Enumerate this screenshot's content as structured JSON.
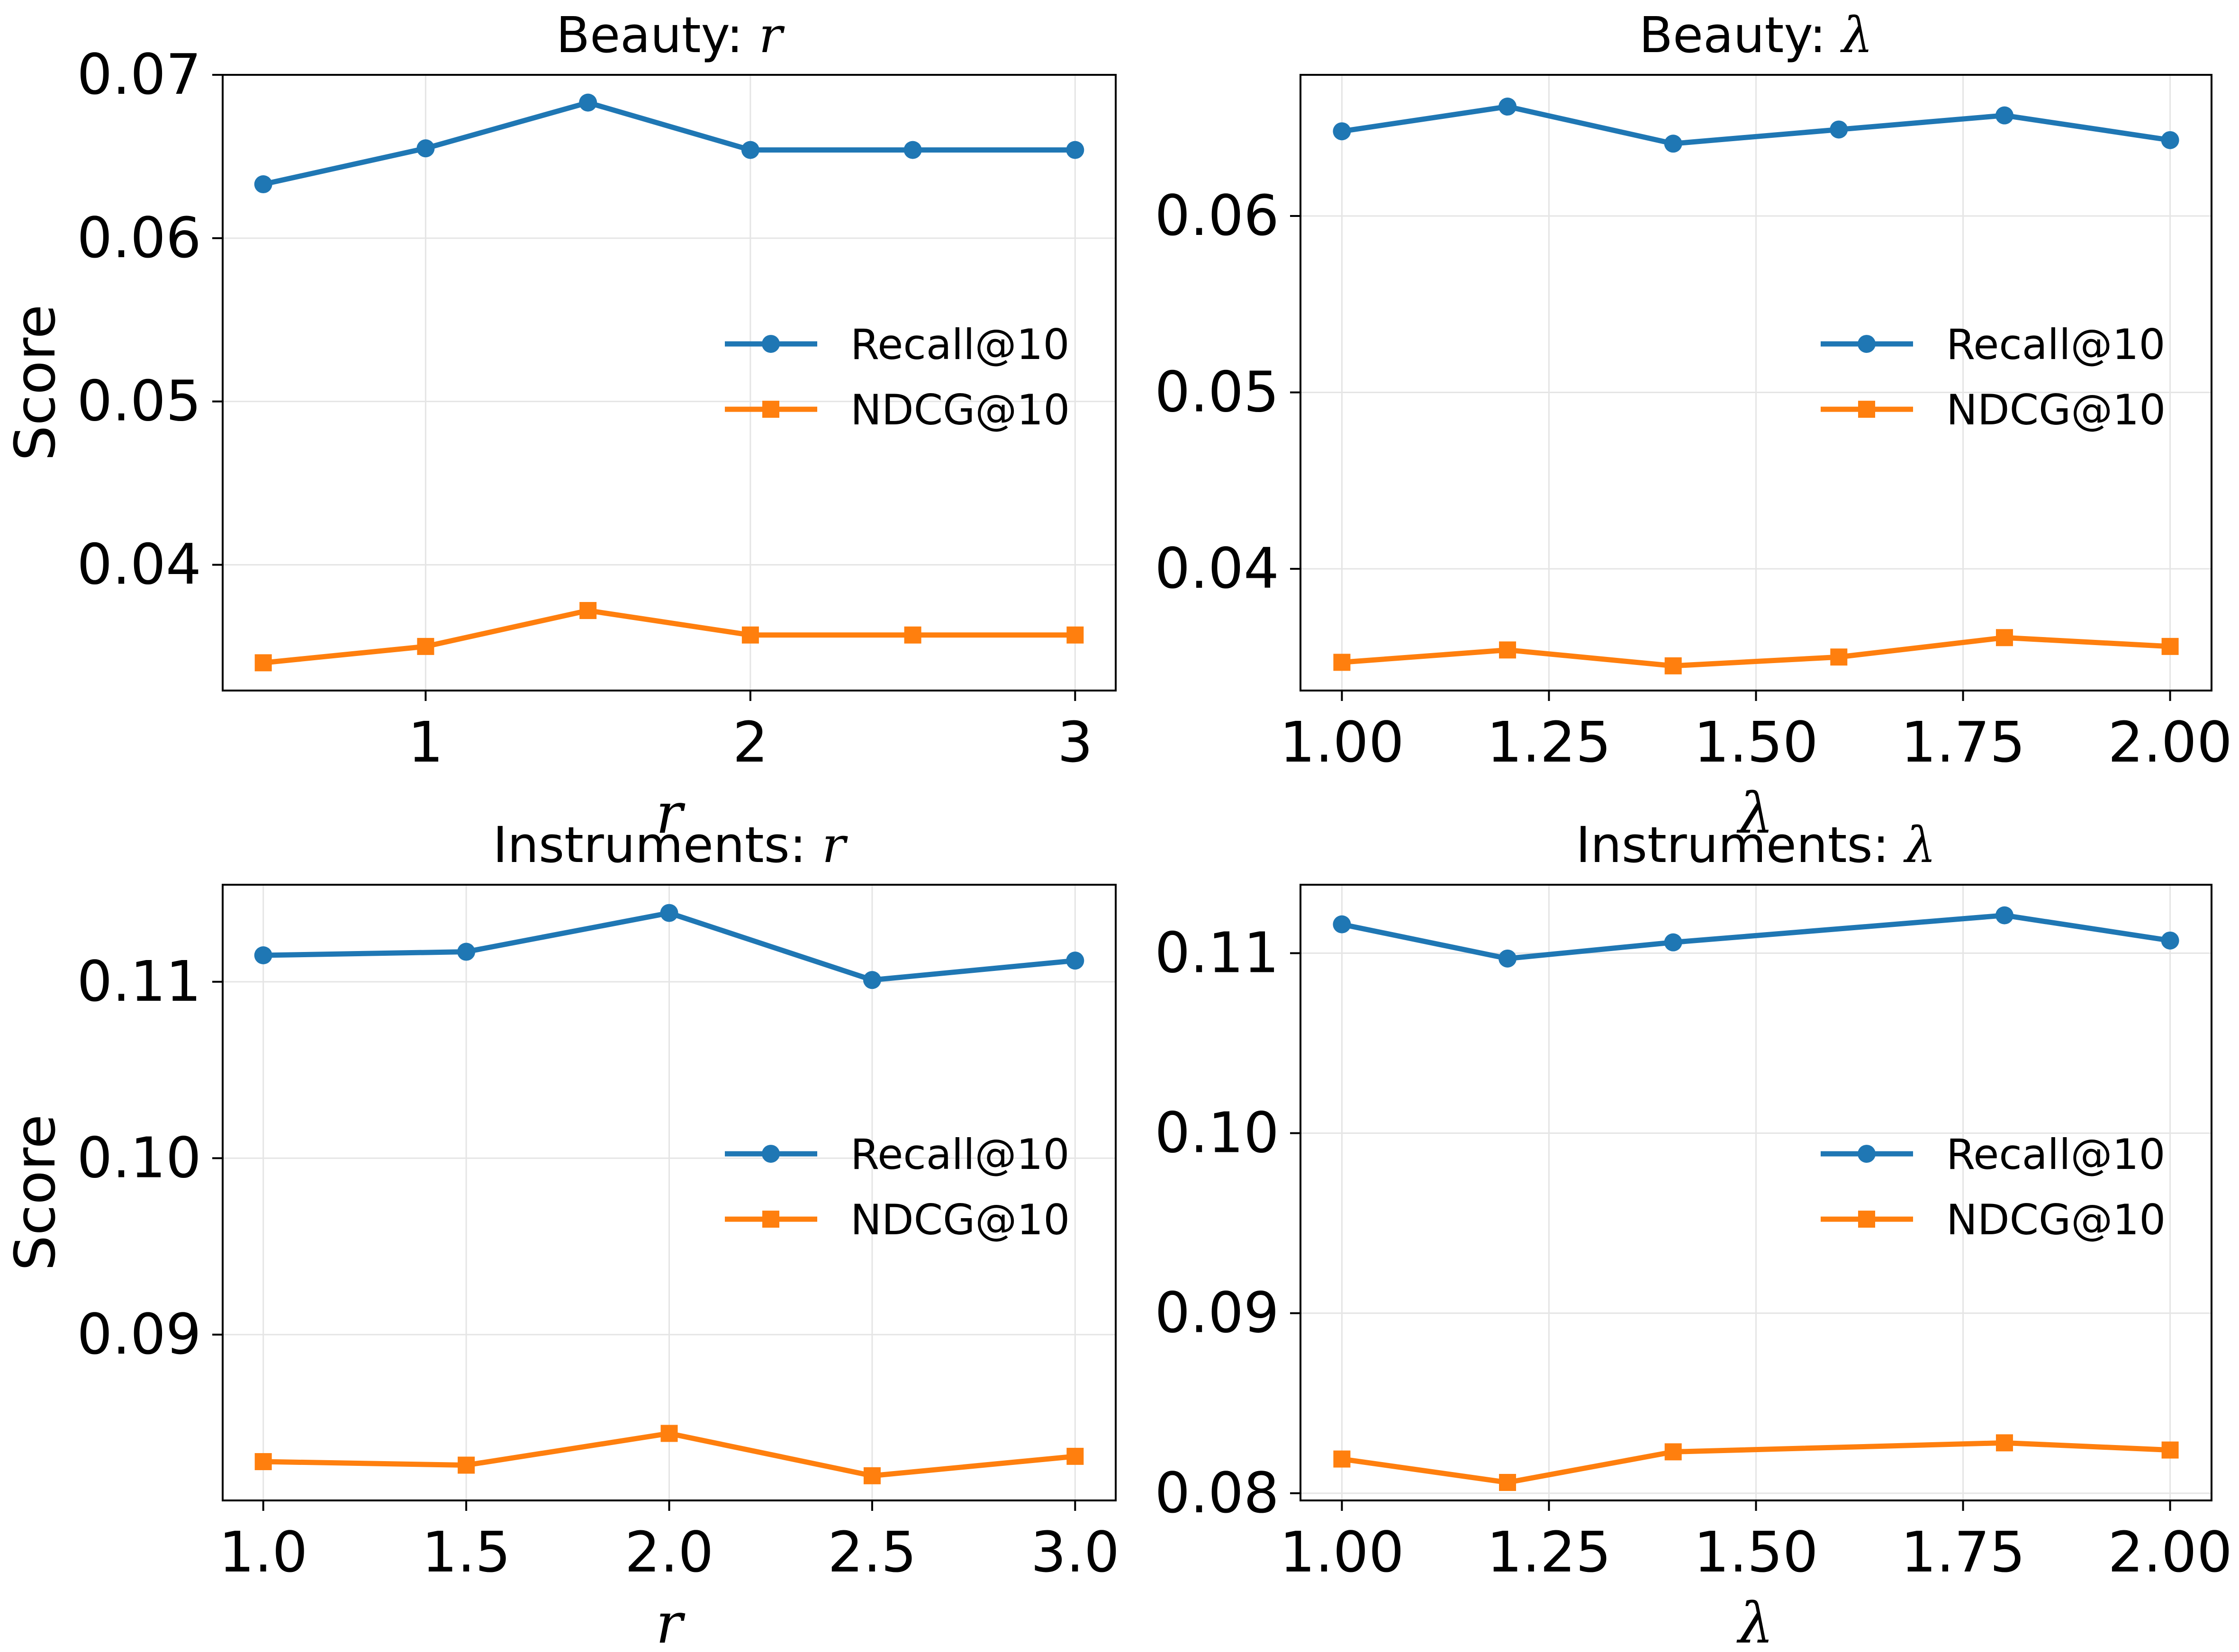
{
  "colors": {
    "recall": "#1f77b4",
    "ndcg": "#ff7f0e",
    "grid": "#e5e5e5",
    "axis": "#000000"
  },
  "chart_data": [
    {
      "type": "line",
      "title_prefix": "Beauty: ",
      "title_symbol": "r",
      "xlabel": "r",
      "ylabel": "Score",
      "xlim": [
        0.375,
        3.125
      ],
      "ylim": [
        0.0323,
        0.07
      ],
      "xticks": [
        1,
        2,
        3
      ],
      "xtick_labels": [
        "1",
        "2",
        "3"
      ],
      "yticks": [
        0.04,
        0.05,
        0.06,
        0.07
      ],
      "ytick_labels": [
        "0.04",
        "0.05",
        "0.06",
        "0.07"
      ],
      "legend_position": "center-right",
      "x": [
        0.5,
        1.0,
        1.5,
        2.0,
        2.5,
        3.0
      ],
      "series": [
        {
          "name": "Recall@10",
          "marker": "circle",
          "values": [
            0.0633,
            0.0655,
            0.0683,
            0.0654,
            0.0654,
            0.0654
          ]
        },
        {
          "name": "NDCG@10",
          "marker": "square",
          "values": [
            0.034,
            0.035,
            0.0372,
            0.0357,
            0.0357,
            0.0357
          ]
        }
      ]
    },
    {
      "type": "line",
      "title_prefix": "Beauty: ",
      "title_symbol": "λ",
      "xlabel": "λ",
      "ylabel": "",
      "xlim": [
        0.95,
        2.05
      ],
      "ylim": [
        0.0331,
        0.068
      ],
      "xticks": [
        1.0,
        1.25,
        1.5,
        1.75,
        2.0
      ],
      "xtick_labels": [
        "1.00",
        "1.25",
        "1.50",
        "1.75",
        "2.00"
      ],
      "yticks": [
        0.04,
        0.05,
        0.06
      ],
      "ytick_labels": [
        "0.04",
        "0.05",
        "0.06"
      ],
      "legend_position": "center-right",
      "x": [
        1.0,
        1.2,
        1.4,
        1.6,
        1.8,
        2.0
      ],
      "series": [
        {
          "name": "Recall@10",
          "marker": "circle",
          "values": [
            0.0648,
            0.0662,
            0.0641,
            0.0649,
            0.0657,
            0.0643
          ]
        },
        {
          "name": "NDCG@10",
          "marker": "square",
          "values": [
            0.0347,
            0.0354,
            0.0345,
            0.035,
            0.0361,
            0.0356
          ]
        }
      ]
    },
    {
      "type": "line",
      "title_prefix": "Instruments: ",
      "title_symbol": "r",
      "xlabel": "r",
      "ylabel": "Score",
      "xlim": [
        0.9,
        3.1
      ],
      "ylim": [
        0.0806,
        0.1155
      ],
      "xticks": [
        1.0,
        1.5,
        2.0,
        2.5,
        3.0
      ],
      "xtick_labels": [
        "1.0",
        "1.5",
        "2.0",
        "2.5",
        "3.0"
      ],
      "yticks": [
        0.09,
        0.1,
        0.11
      ],
      "ytick_labels": [
        "0.09",
        "0.10",
        "0.11"
      ],
      "legend_position": "center-right",
      "x": [
        1.0,
        1.5,
        2.0,
        2.5,
        3.0
      ],
      "series": [
        {
          "name": "Recall@10",
          "marker": "circle",
          "values": [
            0.1115,
            0.1117,
            0.1139,
            0.1101,
            0.1112
          ]
        },
        {
          "name": "NDCG@10",
          "marker": "square",
          "values": [
            0.0828,
            0.0826,
            0.0844,
            0.082,
            0.0831
          ]
        }
      ]
    },
    {
      "type": "line",
      "title_prefix": "Instruments: ",
      "title_symbol": "λ",
      "xlabel": "λ",
      "ylabel": "",
      "xlim": [
        0.95,
        2.05
      ],
      "ylim": [
        0.0796,
        0.1138
      ],
      "xticks": [
        1.0,
        1.25,
        1.5,
        1.75,
        2.0
      ],
      "xtick_labels": [
        "1.00",
        "1.25",
        "1.50",
        "1.75",
        "2.00"
      ],
      "yticks": [
        0.08,
        0.09,
        0.1,
        0.11
      ],
      "ytick_labels": [
        "0.08",
        "0.09",
        "0.10",
        "0.11"
      ],
      "legend_position": "center-right",
      "x": [
        1.0,
        1.2,
        1.4,
        1.6,
        1.8,
        2.0
      ],
      "series": [
        {
          "name": "Recall@10",
          "marker": "circle",
          "values": [
            0.1116,
            0.1097,
            0.1106,
            null,
            0.1121,
            0.1107
          ]
        },
        {
          "name": "NDCG@10",
          "marker": "square",
          "values": [
            0.0819,
            0.0806,
            0.0823,
            null,
            0.0828,
            0.0824
          ]
        }
      ]
    }
  ]
}
